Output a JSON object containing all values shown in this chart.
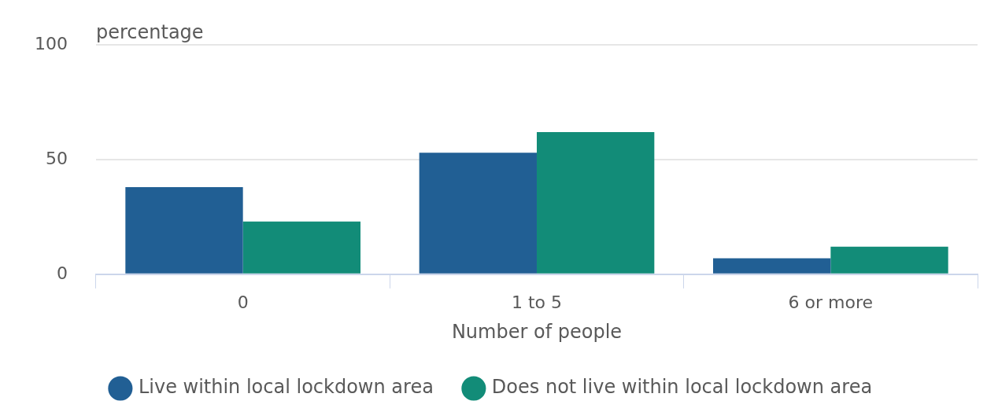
{
  "chart_data": {
    "type": "bar",
    "ylabel": "percentage",
    "xlabel": "Number of people",
    "categories": [
      "0",
      "1 to 5",
      "6 or more"
    ],
    "series": [
      {
        "name": "Live within local lockdown area",
        "color": "#215f94",
        "values": [
          38,
          53,
          7
        ]
      },
      {
        "name": "Does not live within local lockdown area",
        "color": "#128c78",
        "values": [
          23,
          62,
          12
        ]
      }
    ],
    "ylim": [
      0,
      100
    ],
    "yticks": [
      0,
      50,
      100
    ],
    "grid": "y",
    "legend": "bottom"
  }
}
